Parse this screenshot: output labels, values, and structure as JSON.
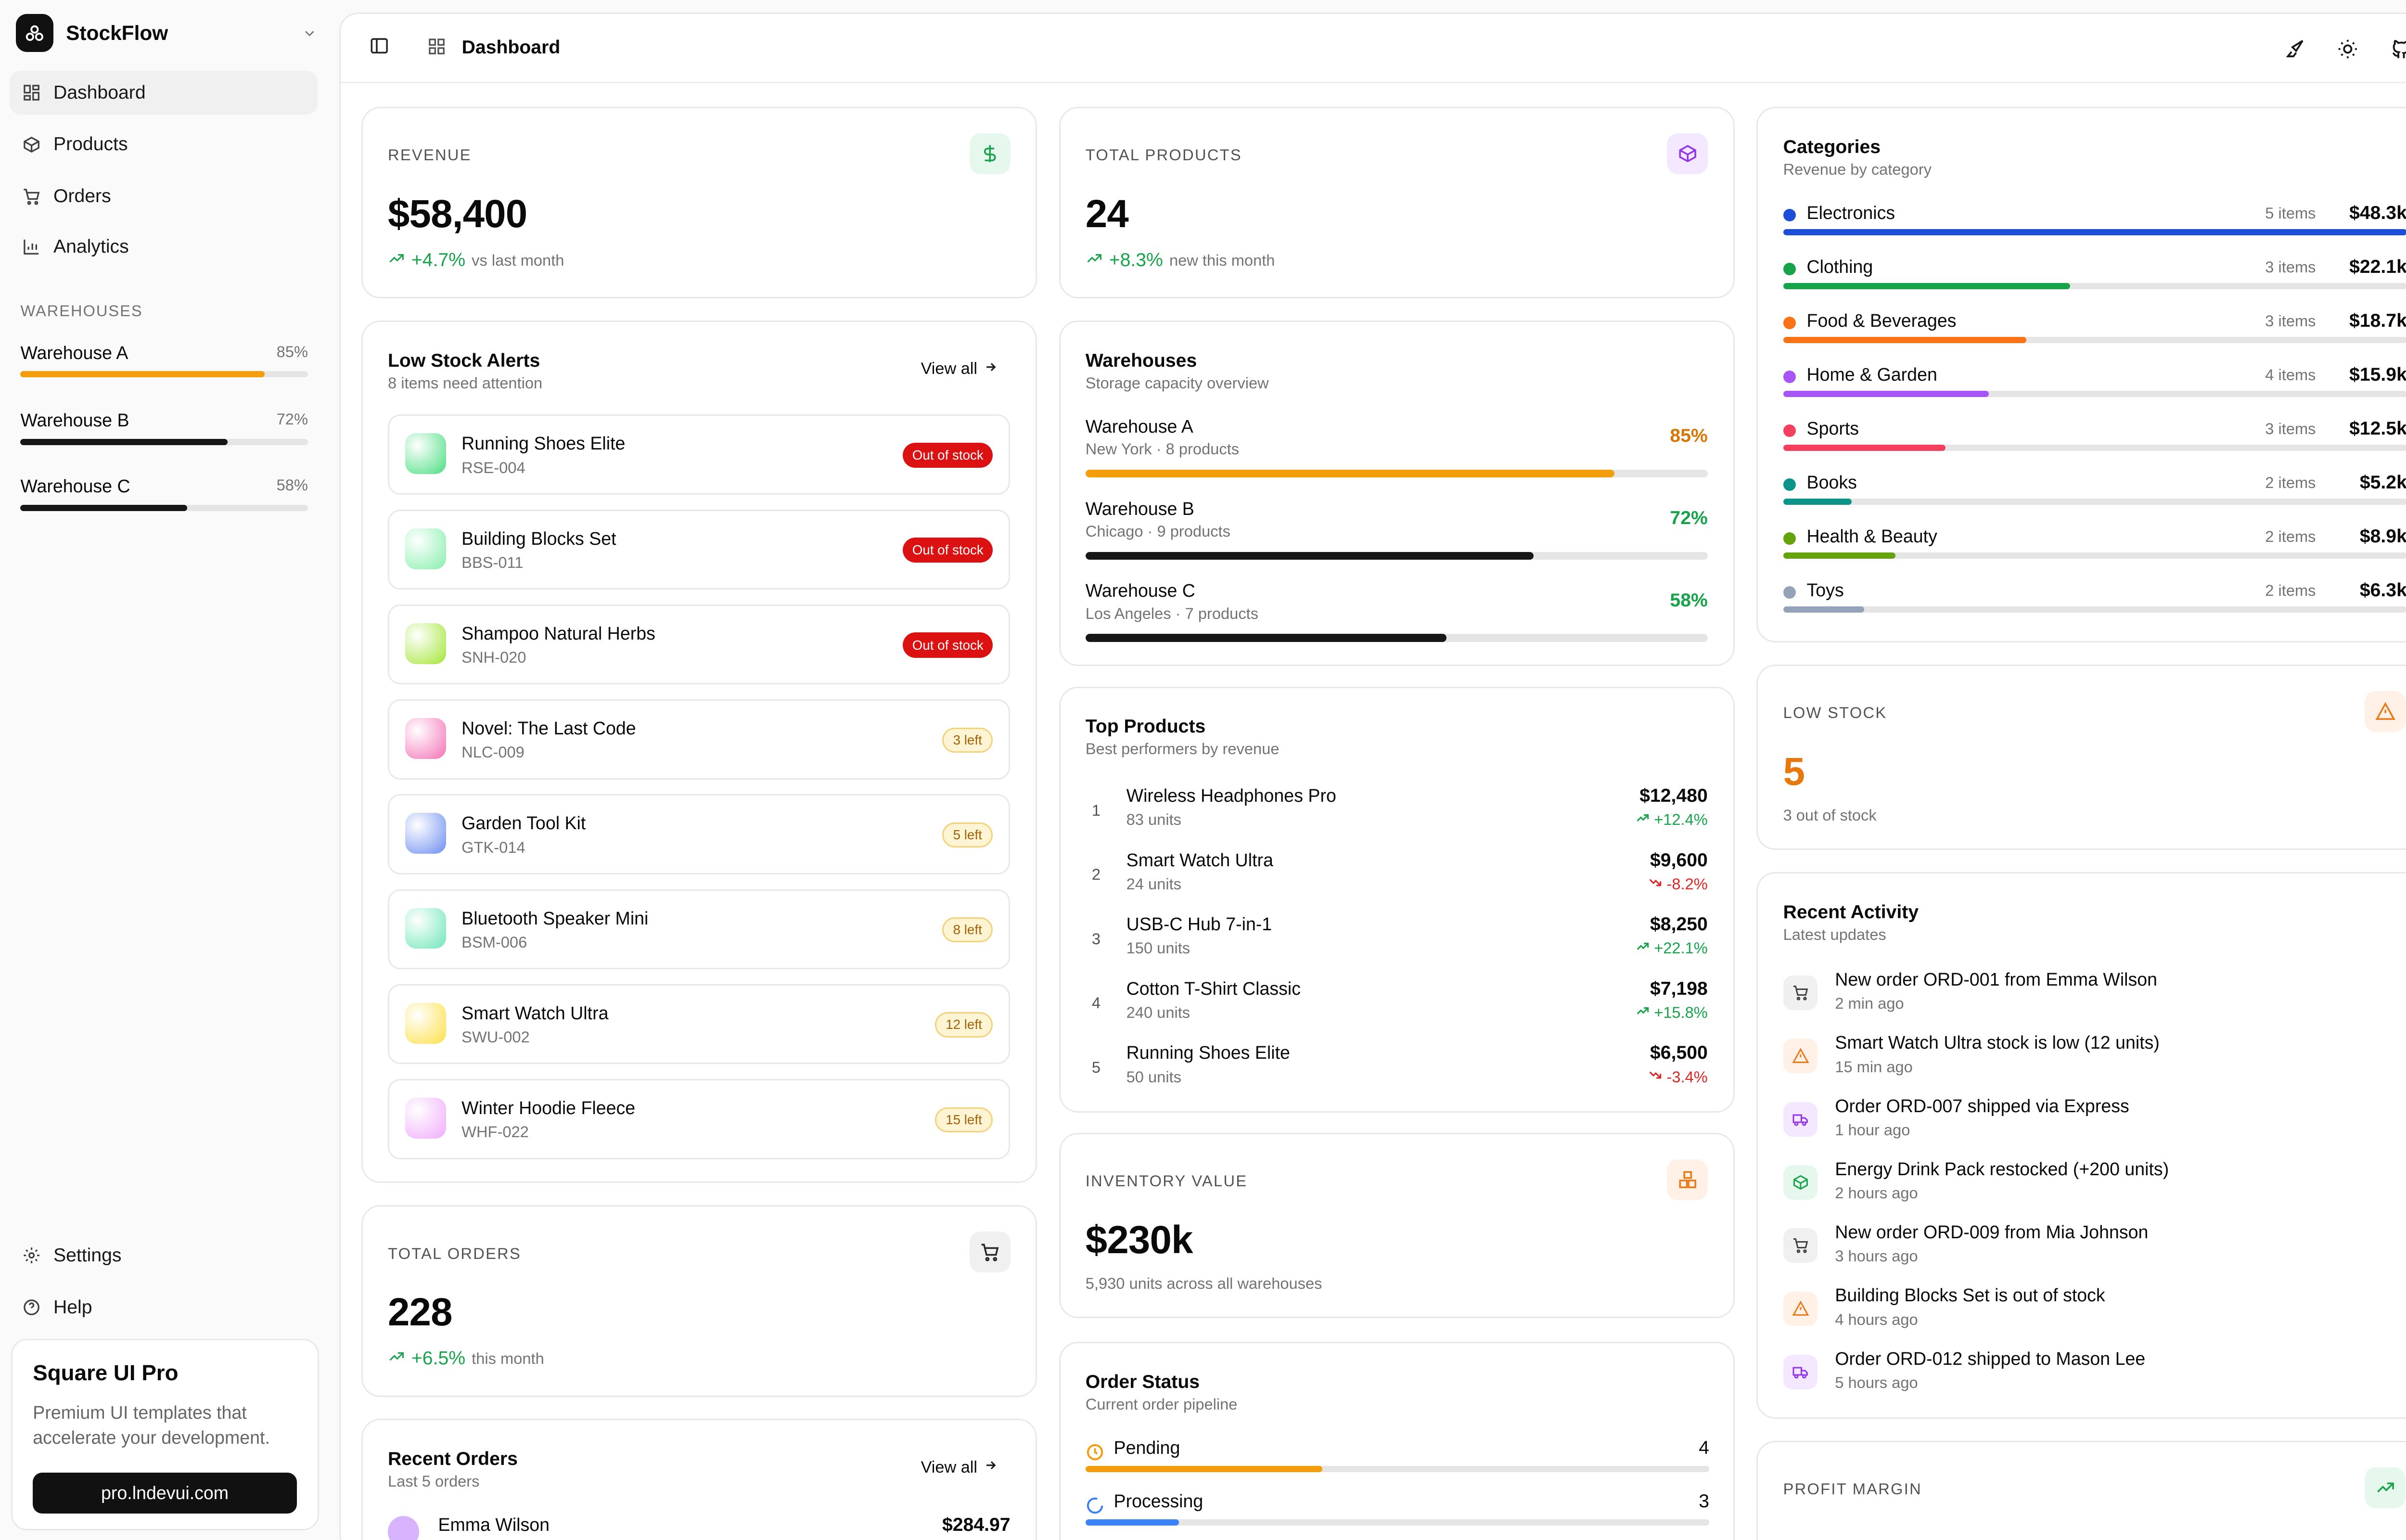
{
  "sidebar": {
    "workspace": "StockFlow",
    "nav": [
      {
        "label": "Dashboard",
        "icon": "grid-icon",
        "active": true
      },
      {
        "label": "Products",
        "icon": "box-icon"
      },
      {
        "label": "Orders",
        "icon": "cart-icon"
      },
      {
        "label": "Analytics",
        "icon": "bar-chart-icon"
      }
    ],
    "warehouses_heading": "WAREHOUSES",
    "warehouses": [
      {
        "name": "Warehouse A",
        "percent_label": "85%",
        "level": 0.85,
        "color": "#f59e0b"
      },
      {
        "name": "Warehouse B",
        "percent_label": "72%",
        "level": 0.72,
        "color": "#171717"
      },
      {
        "name": "Warehouse C",
        "percent_label": "58%",
        "level": 0.58,
        "color": "#171717"
      }
    ],
    "footer_nav": [
      {
        "label": "Settings",
        "icon": "gear-icon"
      },
      {
        "label": "Help",
        "icon": "help-circle-icon"
      }
    ],
    "promo": {
      "title": "Square UI Pro",
      "text": "Premium UI templates that accelerate your development.",
      "button": "pro.lndevui.com"
    }
  },
  "header": {
    "title": "Dashboard"
  },
  "revenue": {
    "label": "REVENUE",
    "value": "$58,400",
    "change": "+4.7%",
    "note": "vs last month"
  },
  "total_products": {
    "label": "TOTAL PRODUCTS",
    "value": "24",
    "change": "+8.3%",
    "note": "new this month"
  },
  "low_stock_alerts": {
    "title": "Low Stock Alerts",
    "subtitle": "8 items need attention",
    "view_all": "View all",
    "items": [
      {
        "name": "Running Shoes Elite",
        "sku": "RSE-004",
        "badge": "Out of stock",
        "status": "out",
        "color": "#4ade80"
      },
      {
        "name": "Building Blocks Set",
        "sku": "BBS-011",
        "badge": "Out of stock",
        "status": "out",
        "color": "#86efac"
      },
      {
        "name": "Shampoo Natural Herbs",
        "sku": "SNH-020",
        "badge": "Out of stock",
        "status": "out",
        "color": "#a3e635"
      },
      {
        "name": "Novel: The Last Code",
        "sku": "NLC-009",
        "badge": "3 left",
        "status": "low",
        "color": "#f472b6"
      },
      {
        "name": "Garden Tool Kit",
        "sku": "GTK-014",
        "badge": "5 left",
        "status": "low",
        "color": "#6d8ef0"
      },
      {
        "name": "Bluetooth Speaker Mini",
        "sku": "BSM-006",
        "badge": "8 left",
        "status": "low",
        "color": "#6ee7b7"
      },
      {
        "name": "Smart Watch Ultra",
        "sku": "SWU-002",
        "badge": "12 left",
        "status": "low",
        "color": "#fde047"
      },
      {
        "name": "Winter Hoodie Fleece",
        "sku": "WHF-022",
        "badge": "15 left",
        "status": "low",
        "color": "#f0abfc"
      }
    ]
  },
  "total_orders": {
    "label": "TOTAL ORDERS",
    "value": "228",
    "change": "+6.5%",
    "note": "this month"
  },
  "recent_orders": {
    "title": "Recent Orders",
    "subtitle": "Last 5 orders",
    "view_all": "View all",
    "first": {
      "name": "Emma Wilson",
      "amount": "$284.97"
    }
  },
  "warehouses": {
    "title": "Warehouses",
    "subtitle": "Storage capacity overview",
    "items": [
      {
        "name": "Warehouse A",
        "detail": "New York · 8 products",
        "percent_label": "85%",
        "level": 0.85,
        "text_color": "#d97706",
        "bar_color": "#f59e0b"
      },
      {
        "name": "Warehouse B",
        "detail": "Chicago · 9 products",
        "percent_label": "72%",
        "level": 0.72,
        "text_color": "#16a34a",
        "bar_color": "#171717"
      },
      {
        "name": "Warehouse C",
        "detail": "Los Angeles · 7 products",
        "percent_label": "58%",
        "level": 0.58,
        "text_color": "#16a34a",
        "bar_color": "#171717"
      }
    ]
  },
  "top_products": {
    "title": "Top Products",
    "subtitle": "Best performers by revenue",
    "items": [
      {
        "rank": "1",
        "name": "Wireless Headphones Pro",
        "units": "83 units",
        "revenue": "$12,480",
        "change": "+12.4%",
        "up": true
      },
      {
        "rank": "2",
        "name": "Smart Watch Ultra",
        "units": "24 units",
        "revenue": "$9,600",
        "change": "-8.2%",
        "up": false
      },
      {
        "rank": "3",
        "name": "USB-C Hub 7-in-1",
        "units": "150 units",
        "revenue": "$8,250",
        "change": "+22.1%",
        "up": true
      },
      {
        "rank": "4",
        "name": "Cotton T-Shirt Classic",
        "units": "240 units",
        "revenue": "$7,198",
        "change": "+15.8%",
        "up": true
      },
      {
        "rank": "5",
        "name": "Running Shoes Elite",
        "units": "50 units",
        "revenue": "$6,500",
        "change": "-3.4%",
        "up": false
      }
    ]
  },
  "inventory_value": {
    "label": "INVENTORY VALUE",
    "value": "$230k",
    "note": "5,930 units across all warehouses"
  },
  "order_status": {
    "title": "Order Status",
    "subtitle": "Current order pipeline",
    "items": [
      {
        "name": "Pending",
        "count": "4",
        "level": 0.38,
        "color": "#f59e0b"
      },
      {
        "name": "Processing",
        "count": "3",
        "level": 0.15,
        "color": "#3b82f6"
      }
    ]
  },
  "categories": {
    "title": "Categories",
    "subtitle": "Revenue by category",
    "items": [
      {
        "name": "Electronics",
        "count": "5 items",
        "value": "$48.3k",
        "level": 1.0,
        "color": "#1d4ed8"
      },
      {
        "name": "Clothing",
        "count": "3 items",
        "value": "$22.1k",
        "level": 0.46,
        "color": "#16a34a"
      },
      {
        "name": "Food & Beverages",
        "count": "3 items",
        "value": "$18.7k",
        "level": 0.39,
        "color": "#f97316"
      },
      {
        "name": "Home & Garden",
        "count": "4 items",
        "value": "$15.9k",
        "level": 0.33,
        "color": "#a855f7"
      },
      {
        "name": "Sports",
        "count": "3 items",
        "value": "$12.5k",
        "level": 0.26,
        "color": "#f43f5e"
      },
      {
        "name": "Books",
        "count": "2 items",
        "value": "$5.2k",
        "level": 0.11,
        "color": "#0d9488"
      },
      {
        "name": "Health & Beauty",
        "count": "2 items",
        "value": "$8.9k",
        "level": 0.18,
        "color": "#65a30d"
      },
      {
        "name": "Toys",
        "count": "2 items",
        "value": "$6.3k",
        "level": 0.13,
        "color": "#94a3b8"
      }
    ]
  },
  "low_stock": {
    "label": "LOW STOCK",
    "value": "5",
    "note": "3 out of stock"
  },
  "recent_activity": {
    "title": "Recent Activity",
    "subtitle": "Latest updates",
    "items": [
      {
        "text": "New order ORD-001 from Emma Wilson",
        "time": "2 min ago",
        "icon": "cart-icon",
        "bg": "#f0f0f0",
        "fg": "#404040"
      },
      {
        "text": "Smart Watch Ultra stock is low (12 units)",
        "time": "15 min ago",
        "icon": "warning-icon",
        "bg": "#fff1e6",
        "fg": "#ea7a1a"
      },
      {
        "text": "Order ORD-007 shipped via Express",
        "time": "1 hour ago",
        "icon": "truck-icon",
        "bg": "#f3e8ff",
        "fg": "#9333ea"
      },
      {
        "text": "Energy Drink Pack restocked (+200 units)",
        "time": "2 hours ago",
        "icon": "box-icon",
        "bg": "#e6f7ee",
        "fg": "#16a34a"
      },
      {
        "text": "New order ORD-009 from Mia Johnson",
        "time": "3 hours ago",
        "icon": "cart-icon",
        "bg": "#f0f0f0",
        "fg": "#404040"
      },
      {
        "text": "Building Blocks Set is out of stock",
        "time": "4 hours ago",
        "icon": "warning-icon",
        "bg": "#fff1e6",
        "fg": "#ea7a1a"
      },
      {
        "text": "Order ORD-012 shipped to Mason Lee",
        "time": "5 hours ago",
        "icon": "truck-icon",
        "bg": "#f3e8ff",
        "fg": "#9333ea"
      }
    ]
  },
  "profit_margin": {
    "label": "PROFIT MARGIN"
  }
}
